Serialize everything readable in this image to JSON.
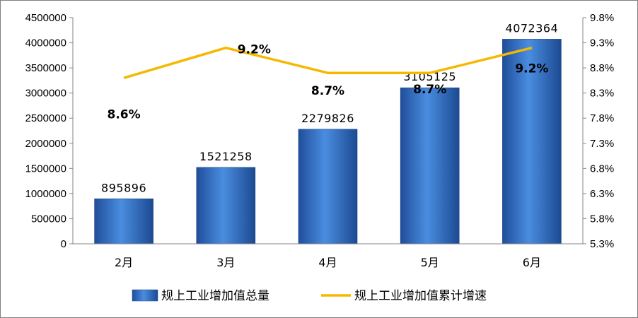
{
  "chart_data": {
    "type": "bar",
    "categories": [
      "2月",
      "3月",
      "4月",
      "5月",
      "6月"
    ],
    "series": [
      {
        "name": "规上工业增加值总量",
        "type": "bar",
        "axis": "left",
        "color": "#3f7fd1",
        "values": [
          895896,
          1521258,
          2279826,
          3105125,
          4072364
        ],
        "labels": [
          "895896",
          "1521258",
          "2279826",
          "3105125",
          "4072364"
        ]
      },
      {
        "name": "规上工业增加值累计增速",
        "type": "line",
        "axis": "right",
        "color": "#f5b800",
        "values": [
          8.6,
          9.2,
          8.7,
          8.7,
          9.2
        ],
        "labels": [
          "8.6%",
          "9.2%",
          "8.7%",
          "8.7%",
          "9.2%"
        ]
      }
    ],
    "y_left": {
      "min": 0,
      "max": 4500000,
      "ticks": [
        "0",
        "500000",
        "1000000",
        "1500000",
        "2000000",
        "2500000",
        "3000000",
        "3500000",
        "4000000",
        "4500000"
      ]
    },
    "y_right": {
      "min": 5.3,
      "max": 9.8,
      "ticks": [
        "5.3%",
        "5.8%",
        "6.3%",
        "6.8%",
        "7.3%",
        "7.8%",
        "8.3%",
        "8.8%",
        "9.3%",
        "9.8%"
      ]
    },
    "grid": false,
    "legend": "bottom"
  }
}
